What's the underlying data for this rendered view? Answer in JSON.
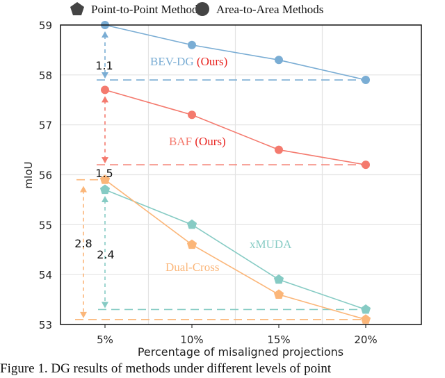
{
  "chart_data": {
    "type": "line",
    "title": "",
    "xlabel": "Percentage of misaligned projections",
    "ylabel": "mIoU",
    "categories": [
      "5%",
      "10%",
      "15%",
      "20%"
    ],
    "x": [
      5,
      10,
      15,
      20
    ],
    "ylim": [
      53,
      59
    ],
    "yticks": [
      53,
      54,
      55,
      56,
      57,
      58,
      59
    ],
    "grid": true,
    "legend": {
      "placement": "top",
      "entries": [
        {
          "label": "Point-to-Point Methods",
          "marker": "pentagon"
        },
        {
          "label": "Area-to-Area Methods",
          "marker": "circle"
        }
      ]
    },
    "series": [
      {
        "name": "BEV-DG",
        "suffix": "(Ours)",
        "marker": "circle",
        "color": "#7aadd4",
        "values": [
          59.0,
          58.6,
          58.3,
          57.9
        ]
      },
      {
        "name": "BAF",
        "suffix": "(Ours)",
        "marker": "circle",
        "color": "#f47a6e",
        "values": [
          57.7,
          57.2,
          56.5,
          56.2
        ]
      },
      {
        "name": "xMUDA",
        "suffix": "",
        "marker": "pentagon",
        "color": "#86cbc4",
        "values": [
          55.7,
          55.0,
          53.9,
          53.3
        ]
      },
      {
        "name": "Dual-Cross",
        "suffix": "",
        "marker": "pentagon",
        "color": "#fbb679",
        "values": [
          55.9,
          54.6,
          53.6,
          53.1
        ]
      }
    ],
    "annotations": [
      {
        "series": "BEV-DG",
        "text": "1.1",
        "from": 59.0,
        "to": 57.9
      },
      {
        "series": "BAF",
        "text": "1.5",
        "from": 57.7,
        "to": 56.2
      },
      {
        "series": "xMUDA",
        "text": "2.4",
        "from": 55.7,
        "to": 53.3
      },
      {
        "series": "Dual-Cross",
        "text": "2.8",
        "from": 55.9,
        "to": 53.1
      }
    ],
    "suffix_color": "#e8231f"
  },
  "caption": "Figure 1. DG results of methods under different levels of point"
}
